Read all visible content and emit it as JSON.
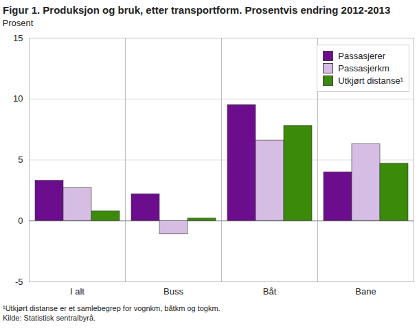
{
  "chart_data": {
    "type": "bar",
    "title": "Figur 1. Produksjon og bruk, etter transportform. Prosentvis endring 2012-2013",
    "y_label": "Prosent",
    "categories": [
      "I alt",
      "Buss",
      "Båt",
      "Bane"
    ],
    "series": [
      {
        "name": "Passasjerer",
        "color": "#6b0d8c",
        "values": [
          3.3,
          2.2,
          9.5,
          4.0
        ]
      },
      {
        "name": "Passasjerkm",
        "color": "#d5bde3",
        "values": [
          2.7,
          -1.1,
          6.6,
          6.3
        ]
      },
      {
        "name": "Utkjørt distanse¹",
        "color": "#3b8a0a",
        "values": [
          0.8,
          0.2,
          7.8,
          4.7
        ]
      }
    ],
    "ylim": [
      -5,
      15
    ],
    "yticks": [
      -5,
      0,
      5,
      10,
      15
    ],
    "grid": true,
    "legend": "top-right",
    "footnote": "¹Utkjørt distanse er et samlebegrep for vognkm, båtkm og togkm.",
    "source": "Kilde: Statistisk sentralbyrå."
  }
}
